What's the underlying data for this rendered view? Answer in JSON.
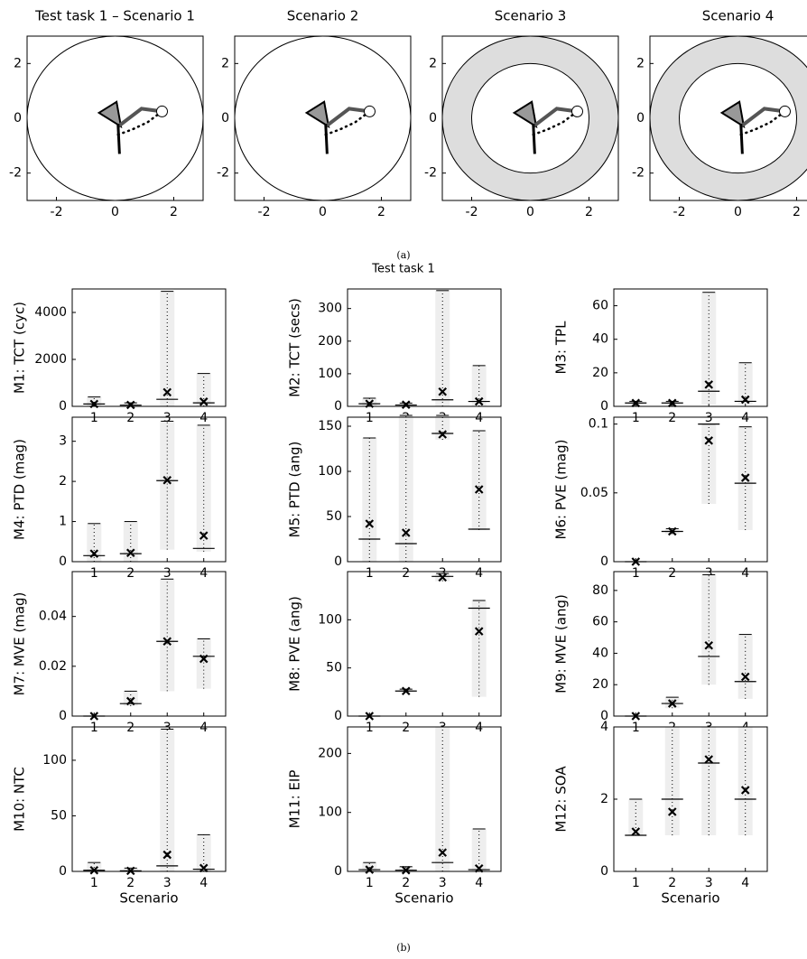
{
  "figure": {
    "caption_a": "(a)",
    "subtitle": "Test task 1",
    "caption_b": "(b)"
  },
  "chart_data": [
    {
      "type": "workspace",
      "title": "Test task 1 – Scenario 1",
      "xlim": [
        -3,
        3
      ],
      "ylim": [
        -3,
        3
      ],
      "xticks": [
        -2,
        0,
        2
      ],
      "yticks": [
        -2,
        0,
        2
      ],
      "shaded_ring": false
    },
    {
      "type": "workspace",
      "title": "Scenario 2",
      "xlim": [
        -3,
        3
      ],
      "ylim": [
        -3,
        3
      ],
      "xticks": [
        -2,
        0,
        2
      ],
      "yticks": [
        -2,
        0,
        2
      ],
      "shaded_ring": false
    },
    {
      "type": "workspace",
      "title": "Scenario 3",
      "xlim": [
        -3,
        3
      ],
      "ylim": [
        -3,
        3
      ],
      "xticks": [
        -2,
        0,
        2
      ],
      "yticks": [
        -2,
        0,
        2
      ],
      "shaded_ring": true
    },
    {
      "type": "workspace",
      "title": "Scenario 4",
      "xlim": [
        -3,
        3
      ],
      "ylim": [
        -3,
        3
      ],
      "xticks": [
        -2,
        0,
        2
      ],
      "yticks": [
        -2,
        0,
        2
      ],
      "shaded_ring": true
    },
    {
      "type": "summary",
      "ylabel": "M1: TCT (cyc)",
      "x": [
        1,
        2,
        3,
        4
      ],
      "xlim": [
        0.4,
        4.6
      ],
      "xticks": [
        1,
        2,
        3,
        4
      ],
      "ylim": [
        0,
        5000
      ],
      "yticks": [
        0,
        2000,
        4000
      ],
      "min": [
        0,
        0,
        0,
        0
      ],
      "max": [
        400,
        150,
        4900,
        1400
      ],
      "median": [
        100,
        50,
        300,
        150
      ],
      "mean": [
        100,
        60,
        600,
        200
      ]
    },
    {
      "type": "summary",
      "ylabel": "M2: TCT (secs)",
      "x": [
        1,
        2,
        3,
        4
      ],
      "xlim": [
        0.4,
        4.6
      ],
      "xticks": [
        1,
        2,
        3,
        4
      ],
      "ylim": [
        0,
        360
      ],
      "yticks": [
        0,
        100,
        200,
        300
      ],
      "min": [
        0,
        0,
        0,
        0
      ],
      "max": [
        25,
        10,
        355,
        125
      ],
      "median": [
        8,
        4,
        20,
        15
      ],
      "mean": [
        8,
        5,
        45,
        15
      ]
    },
    {
      "type": "summary",
      "ylabel": "M3: TPL",
      "x": [
        1,
        2,
        3,
        4
      ],
      "xlim": [
        0.4,
        4.6
      ],
      "xticks": [
        1,
        2,
        3,
        4
      ],
      "ylim": [
        0,
        70
      ],
      "yticks": [
        0,
        20,
        40,
        60
      ],
      "min": [
        1,
        1,
        1,
        1
      ],
      "max": [
        3,
        3,
        68,
        26
      ],
      "median": [
        2,
        2,
        9,
        3
      ],
      "mean": [
        2,
        2,
        13,
        4
      ]
    },
    {
      "type": "summary",
      "ylabel": "M4: PTD (mag)",
      "x": [
        1,
        2,
        3,
        4
      ],
      "xlim": [
        0.4,
        4.6
      ],
      "xticks": [
        1,
        2,
        3,
        4
      ],
      "ylim": [
        0,
        3.6
      ],
      "yticks": [
        0,
        1,
        2,
        3
      ],
      "min": [
        0,
        0,
        0.3,
        0.25
      ],
      "max": [
        0.95,
        1.0,
        3.5,
        3.4
      ],
      "median": [
        0.15,
        0.2,
        2.02,
        0.33
      ],
      "mean": [
        0.2,
        0.22,
        2.03,
        0.65
      ]
    },
    {
      "type": "summary",
      "ylabel": "M5: PTD (ang)",
      "x": [
        1,
        2,
        3,
        4
      ],
      "xlim": [
        0.4,
        4.6
      ],
      "xticks": [
        1,
        2,
        3,
        4
      ],
      "ylim": [
        0,
        160
      ],
      "yticks": [
        0,
        50,
        100,
        150
      ],
      "min": [
        0,
        0,
        135,
        35
      ],
      "max": [
        137,
        162,
        162,
        145
      ],
      "median": [
        25,
        20,
        142,
        36
      ],
      "mean": [
        42,
        32,
        141,
        80
      ]
    },
    {
      "type": "summary",
      "ylabel": "M6: PVE (mag)",
      "x": [
        1,
        2,
        3,
        4
      ],
      "xlim": [
        0.4,
        4.6
      ],
      "xticks": [
        1,
        2,
        3,
        4
      ],
      "ylim": [
        0,
        0.105
      ],
      "yticks": [
        0,
        0.05,
        0.1
      ],
      "min": [
        0,
        0.02,
        0.042,
        0.023
      ],
      "max": [
        0,
        0.024,
        0.1,
        0.098
      ],
      "median": [
        0,
        0.022,
        0.1,
        0.057
      ],
      "mean": [
        0,
        0.022,
        0.088,
        0.061
      ]
    },
    {
      "type": "summary",
      "ylabel": "M7: MVE (mag)",
      "x": [
        1,
        2,
        3,
        4
      ],
      "xlim": [
        0.4,
        4.6
      ],
      "xticks": [
        1,
        2,
        3,
        4
      ],
      "ylim": [
        0,
        0.058
      ],
      "yticks": [
        0,
        0.02,
        0.04
      ],
      "min": [
        0,
        0.004,
        0.01,
        0.011
      ],
      "max": [
        0,
        0.01,
        0.055,
        0.031
      ],
      "median": [
        0,
        0.005,
        0.03,
        0.024
      ],
      "mean": [
        0,
        0.006,
        0.03,
        0.023
      ]
    },
    {
      "type": "summary",
      "ylabel": "M8: PVE (ang)",
      "x": [
        1,
        2,
        3,
        4
      ],
      "xlim": [
        0.4,
        4.6
      ],
      "xticks": [
        1,
        2,
        3,
        4
      ],
      "ylim": [
        0,
        150
      ],
      "yticks": [
        0,
        50,
        100
      ],
      "min": [
        0,
        25,
        140,
        20
      ],
      "max": [
        0,
        28,
        148,
        120
      ],
      "median": [
        0,
        26,
        145,
        112
      ],
      "mean": [
        0,
        26,
        144,
        88
      ]
    },
    {
      "type": "summary",
      "ylabel": "M9: MVE (ang)",
      "x": [
        1,
        2,
        3,
        4
      ],
      "xlim": [
        0.4,
        4.6
      ],
      "xticks": [
        1,
        2,
        3,
        4
      ],
      "ylim": [
        0,
        92
      ],
      "yticks": [
        0,
        20,
        40,
        60,
        80
      ],
      "min": [
        0,
        5,
        20,
        11
      ],
      "max": [
        0,
        12,
        90,
        52
      ],
      "median": [
        0,
        8,
        38,
        22
      ],
      "mean": [
        0,
        8,
        45,
        25
      ]
    },
    {
      "type": "summary",
      "ylabel": "M10: NTC",
      "xlabel": "Scenario",
      "x": [
        1,
        2,
        3,
        4
      ],
      "xlim": [
        0.4,
        4.6
      ],
      "xticks": [
        1,
        2,
        3,
        4
      ],
      "ylim": [
        0,
        130
      ],
      "yticks": [
        0,
        50,
        100
      ],
      "min": [
        0,
        0,
        0,
        0
      ],
      "max": [
        8,
        3,
        128,
        33
      ],
      "median": [
        1,
        0.5,
        5,
        2
      ],
      "mean": [
        1,
        0.5,
        15,
        3
      ]
    },
    {
      "type": "summary",
      "ylabel": "M11: EIP",
      "xlabel": "Scenario",
      "x": [
        1,
        2,
        3,
        4
      ],
      "xlim": [
        0.4,
        4.6
      ],
      "xticks": [
        1,
        2,
        3,
        4
      ],
      "ylim": [
        0,
        245
      ],
      "yticks": [
        0,
        100,
        200
      ],
      "min": [
        0,
        0,
        0,
        0
      ],
      "max": [
        15,
        8,
        245,
        72
      ],
      "median": [
        3,
        2,
        15,
        3
      ],
      "mean": [
        3,
        2,
        32,
        5
      ]
    },
    {
      "type": "summary",
      "ylabel": "M12: SOA",
      "xlabel": "Scenario",
      "x": [
        1,
        2,
        3,
        4
      ],
      "xlim": [
        0.4,
        4.6
      ],
      "xticks": [
        1,
        2,
        3,
        4
      ],
      "ylim": [
        0,
        4
      ],
      "yticks": [
        0,
        2,
        4
      ],
      "min": [
        1,
        1,
        1,
        1
      ],
      "max": [
        2,
        4,
        4,
        4
      ],
      "median": [
        1,
        2,
        3,
        2
      ],
      "mean": [
        1.1,
        1.65,
        3.1,
        2.25
      ]
    }
  ]
}
